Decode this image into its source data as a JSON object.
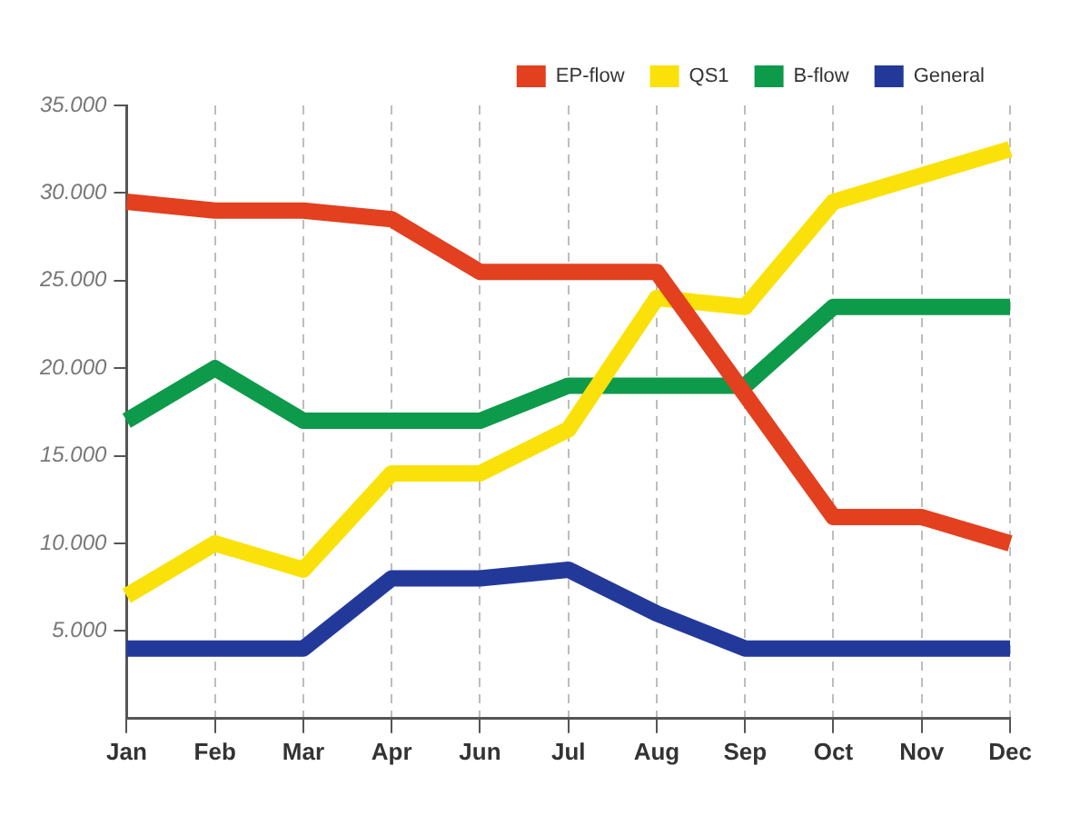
{
  "chart_data": {
    "type": "line",
    "categories": [
      "Jan",
      "Feb",
      "Mar",
      "Apr",
      "Jun",
      "Jul",
      "Aug",
      "Sep",
      "Oct",
      "Nov",
      "Dec"
    ],
    "series": [
      {
        "name": "EP-flow",
        "color": "#e2401f",
        "values": [
          29500,
          29000,
          29000,
          28500,
          25500,
          25500,
          25500,
          18500,
          11500,
          11500,
          10000
        ]
      },
      {
        "name": "QS1",
        "color": "#fbe10a",
        "values": [
          7000,
          10000,
          8500,
          14000,
          14000,
          16500,
          24000,
          23500,
          29500,
          31000,
          32500
        ]
      },
      {
        "name": "B-flow",
        "color": "#0d9a4a",
        "values": [
          17000,
          20000,
          17000,
          17000,
          17000,
          19000,
          19000,
          19000,
          23500,
          23500,
          23500
        ]
      },
      {
        "name": "General",
        "color": "#23399a",
        "values": [
          4000,
          4000,
          4000,
          8000,
          8000,
          8500,
          6000,
          4000,
          4000,
          4000,
          4000
        ]
      }
    ],
    "ylim": [
      0,
      35000
    ],
    "yticks": [
      {
        "value": 5000,
        "label": "5.000"
      },
      {
        "value": 10000,
        "label": "10.000"
      },
      {
        "value": 15000,
        "label": "15.000"
      },
      {
        "value": 20000,
        "label": "20.000"
      },
      {
        "value": 25000,
        "label": "25.000"
      },
      {
        "value": 30000,
        "label": "30.000"
      },
      {
        "value": 35000,
        "label": "35.000"
      }
    ],
    "grid": "x",
    "legend": "top right",
    "marker": "none",
    "line_style": "solid"
  }
}
